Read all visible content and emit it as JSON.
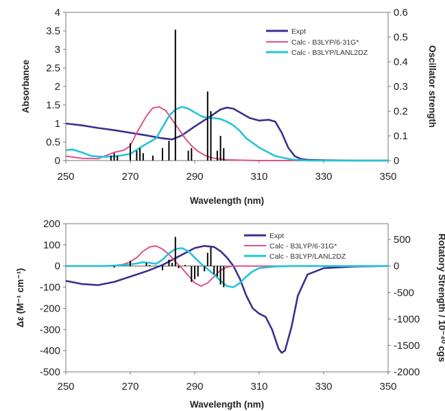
{
  "chart_data": [
    {
      "type": "line",
      "xlabel": "Wavelength (nm)",
      "ylabel": "Absorbance",
      "y2label": "Oscillator strength",
      "xlim": [
        250,
        350
      ],
      "ylim": [
        0,
        4
      ],
      "y2lim": [
        0,
        0.6
      ],
      "xticks": [
        "250",
        "270",
        "290",
        "310",
        "330",
        "350"
      ],
      "yticks": [
        "0",
        "0.5",
        "1",
        "1.5",
        "2",
        "2.5",
        "3",
        "3.5",
        "4"
      ],
      "y2ticks": [
        "0",
        "0.1",
        "0.2",
        "0.3",
        "0.4",
        "0.5",
        "0.6"
      ],
      "grid": false,
      "legend_position": "top-right",
      "series": [
        {
          "name": "Expt",
          "color": "#3a2f8f",
          "x": [
            250,
            255,
            260,
            265,
            270,
            275,
            280,
            283,
            286,
            290,
            295,
            298,
            300,
            302,
            304,
            307,
            310,
            313,
            315,
            317,
            319,
            321,
            323,
            325,
            330,
            340,
            350
          ],
          "y": [
            1.0,
            0.95,
            0.88,
            0.82,
            0.75,
            0.68,
            0.6,
            0.57,
            0.68,
            0.92,
            1.2,
            1.38,
            1.43,
            1.4,
            1.3,
            1.15,
            1.08,
            1.1,
            1.05,
            0.75,
            0.35,
            0.12,
            0.04,
            0.02,
            0.01,
            0.0,
            0.0
          ]
        },
        {
          "name": "Calc - B3LYP/6-31G*",
          "color": "#e0508a",
          "x": [
            250,
            255,
            260,
            262,
            265,
            268,
            270,
            272,
            275,
            277,
            279,
            281,
            283,
            285,
            287,
            289,
            291,
            293,
            295,
            297,
            300,
            305,
            310,
            320,
            350
          ],
          "y": [
            0.12,
            0.06,
            0.05,
            0.12,
            0.22,
            0.28,
            0.4,
            0.75,
            1.2,
            1.42,
            1.45,
            1.35,
            1.1,
            0.85,
            0.6,
            0.4,
            0.25,
            0.15,
            0.08,
            0.05,
            0.02,
            0.01,
            0.0,
            0.0,
            0.0
          ]
        },
        {
          "name": "Calc - B3LYP/LANL2DZ",
          "color": "#22c4d8",
          "x": [
            250,
            252,
            255,
            258,
            262,
            266,
            270,
            274,
            278,
            280,
            282,
            284,
            286,
            288,
            290,
            292,
            294,
            296,
            298,
            300,
            302,
            304,
            306,
            310,
            315,
            320,
            325,
            350
          ],
          "y": [
            0.28,
            0.3,
            0.22,
            0.12,
            0.1,
            0.12,
            0.18,
            0.4,
            0.6,
            0.9,
            1.2,
            1.38,
            1.45,
            1.4,
            1.3,
            1.2,
            1.15,
            1.15,
            1.12,
            1.05,
            0.95,
            0.8,
            0.6,
            0.35,
            0.12,
            0.03,
            0.0,
            0.0
          ]
        }
      ],
      "sticks": {
        "color": "#000000",
        "x": [
          264,
          265,
          266,
          270,
          272,
          273,
          274,
          277,
          280,
          282,
          284,
          288,
          289,
          294,
          295,
          297,
          298,
          299
        ],
        "y2": [
          0.02,
          0.03,
          0.02,
          0.07,
          0.04,
          0.05,
          0.03,
          0.02,
          0.05,
          0.08,
          0.53,
          0.04,
          0.05,
          0.28,
          0.2,
          0.04,
          0.1,
          0.05
        ]
      }
    },
    {
      "type": "line",
      "xlabel": "Wavelength (nm)",
      "ylabel": "Δε (M⁻¹ cm⁻¹)",
      "y2label": "Rotatory Strength / 10⁻⁴⁰ cgs",
      "xlim": [
        250,
        350
      ],
      "ylim": [
        -500,
        200
      ],
      "y2lim": [
        -2000,
        800
      ],
      "xticks": [
        "250",
        "270",
        "290",
        "310",
        "330",
        "350"
      ],
      "yticks": [
        "200",
        "100",
        "0",
        "-100",
        "-200",
        "-300",
        "-400",
        "-500"
      ],
      "y2ticks": [
        "500",
        "0",
        "-500",
        "-1000",
        "-1500",
        "-2000"
      ],
      "grid": false,
      "legend_position": "top-right",
      "series": [
        {
          "name": "Expt",
          "color": "#3a2f8f",
          "x": [
            250,
            255,
            260,
            265,
            270,
            275,
            280,
            285,
            290,
            293,
            296,
            298,
            300,
            302,
            304,
            306,
            308,
            310,
            312,
            314,
            316,
            317,
            318,
            320,
            322,
            325,
            330,
            340,
            350
          ],
          "y": [
            -70,
            -85,
            -90,
            -75,
            -50,
            -25,
            5,
            45,
            85,
            95,
            90,
            70,
            40,
            0,
            -60,
            -140,
            -200,
            -225,
            -240,
            -300,
            -390,
            -410,
            -400,
            -290,
            -140,
            -40,
            -10,
            -2,
            0
          ]
        },
        {
          "name": "Calc - B3LYP/6-31G*",
          "color": "#e0508a",
          "x": [
            250,
            260,
            265,
            268,
            270,
            272,
            274,
            276,
            278,
            280,
            282,
            284,
            286,
            288,
            290,
            292,
            294,
            296,
            298,
            300,
            302,
            305,
            310,
            350
          ],
          "y": [
            0,
            0,
            2,
            8,
            20,
            40,
            70,
            90,
            95,
            80,
            55,
            20,
            -10,
            -45,
            -80,
            -95,
            -80,
            -50,
            -20,
            -5,
            0,
            0,
            0,
            0
          ]
        },
        {
          "name": "Calc - B3LYP/LANL2DZ",
          "color": "#22c4d8",
          "x": [
            250,
            262,
            266,
            268,
            270,
            272,
            274,
            276,
            278,
            280,
            282,
            284,
            286,
            288,
            290,
            292,
            294,
            296,
            298,
            300,
            302,
            304,
            306,
            308,
            310,
            315,
            320,
            350
          ],
          "y": [
            0,
            0,
            2,
            5,
            8,
            12,
            18,
            15,
            10,
            30,
            60,
            80,
            85,
            70,
            40,
            10,
            -15,
            -40,
            -70,
            -95,
            -100,
            -80,
            -50,
            -25,
            -10,
            -2,
            0,
            0
          ]
        }
      ],
      "sticks": {
        "color": "#000000",
        "x": [
          265,
          270,
          275,
          276,
          280,
          282,
          283,
          284,
          285,
          287,
          289,
          290,
          291,
          293,
          294,
          295,
          296,
          297,
          298,
          299
        ],
        "y2": [
          -30,
          100,
          60,
          20,
          -80,
          120,
          60,
          550,
          -40,
          20,
          -300,
          -250,
          -200,
          -100,
          250,
          350,
          -150,
          -200,
          -350,
          -400
        ]
      }
    }
  ]
}
